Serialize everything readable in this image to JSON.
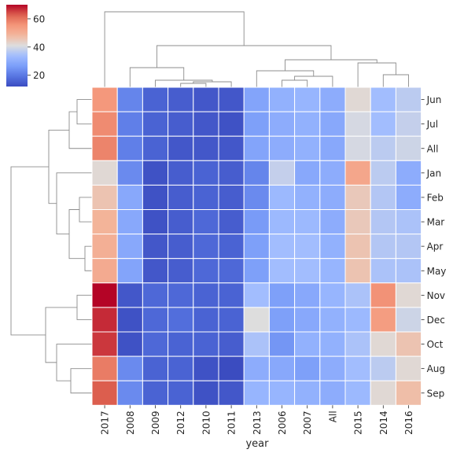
{
  "chart_data": {
    "type": "heatmap",
    "title": "",
    "xlabel": "year",
    "ylabel": "",
    "columns": [
      "2017",
      "2008",
      "2009",
      "2012",
      "2010",
      "2011",
      "2013",
      "2006",
      "2007",
      "All",
      "2015",
      "2014",
      "2016"
    ],
    "rows": [
      "Jun",
      "Jul",
      "All",
      "Jan",
      "Feb",
      "Mar",
      "Apr",
      "May",
      "Nov",
      "Dec",
      "Oct",
      "Aug",
      "Sep"
    ],
    "values": [
      [
        55,
        22,
        16,
        15,
        14,
        14,
        28,
        31,
        32,
        30,
        42,
        34,
        37
      ],
      [
        57,
        21,
        16,
        15,
        14,
        13,
        27,
        30,
        31,
        29,
        40,
        34,
        38
      ],
      [
        58,
        21,
        16,
        14,
        14,
        14,
        28,
        30,
        31,
        29,
        40,
        37,
        39
      ],
      [
        42,
        23,
        13,
        15,
        16,
        15,
        22,
        38,
        29,
        30,
        52,
        37,
        30
      ],
      [
        46,
        29,
        13,
        15,
        16,
        15,
        23,
        33,
        31,
        30,
        45,
        36,
        30
      ],
      [
        49,
        29,
        13,
        15,
        17,
        15,
        26,
        33,
        33,
        30,
        45,
        36,
        35
      ],
      [
        50,
        29,
        14,
        15,
        17,
        16,
        27,
        34,
        34,
        31,
        46,
        36,
        36
      ],
      [
        51,
        28,
        14,
        15,
        17,
        17,
        27,
        34,
        34,
        32,
        46,
        35,
        35
      ],
      [
        70,
        14,
        17,
        17,
        16,
        16,
        34,
        27,
        29,
        32,
        35,
        56,
        42
      ],
      [
        67,
        13,
        17,
        18,
        16,
        16,
        41,
        27,
        29,
        31,
        33,
        54,
        39
      ],
      [
        66,
        13,
        17,
        16,
        16,
        15,
        35,
        25,
        31,
        31,
        35,
        42,
        46
      ],
      [
        59,
        23,
        16,
        16,
        13,
        12,
        30,
        29,
        27,
        30,
        34,
        37,
        42
      ],
      [
        63,
        23,
        16,
        16,
        13,
        14,
        32,
        32,
        31,
        30,
        33,
        42,
        47
      ]
    ],
    "colormap": "coolwarm",
    "vmin": 12,
    "vmax": 70,
    "colorbar": {
      "ticks": [
        20,
        40,
        60
      ]
    },
    "col_dendrogram": true,
    "row_dendrogram": true
  }
}
